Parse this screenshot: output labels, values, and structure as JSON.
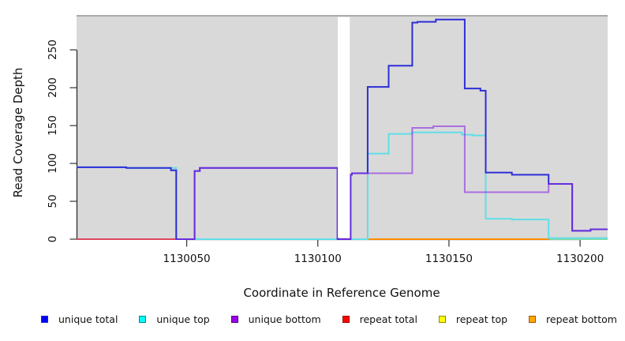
{
  "figure": {
    "y_axis": {
      "label": "Read Coverage Depth",
      "ticks": [
        "0",
        "50",
        "100",
        "150",
        "200",
        "250"
      ]
    },
    "x_axis": {
      "label": "Coordinate in Reference Genome",
      "ticks": [
        "1130050",
        "1130100",
        "1130150",
        "1130200"
      ]
    }
  },
  "legend": {
    "items": [
      {
        "label": "unique total",
        "fill": "#0000ff",
        "border": "#2222cc"
      },
      {
        "label": "unique top",
        "fill": "#00ffff",
        "border": "#008b8b"
      },
      {
        "label": "unique bottom",
        "fill": "#9900e6",
        "border": "#550080"
      },
      {
        "label": "repeat total",
        "fill": "#ff0000",
        "border": "#990000"
      },
      {
        "label": "repeat top",
        "fill": "#ffff00",
        "border": "#8b8b00"
      },
      {
        "label": "repeat bottom",
        "fill": "#ffa500",
        "border": "#aa5500"
      }
    ]
  },
  "chart_data": {
    "type": "line",
    "subtype": "step",
    "title": "",
    "xlabel": "Coordinate in Reference Genome",
    "ylabel": "Read Coverage Depth",
    "xlim": [
      1130008,
      1130210.5
    ],
    "ylim": [
      0,
      296
    ],
    "x_ticks": [
      1130050,
      1130100,
      1130150,
      1130200
    ],
    "y_ticks": [
      0,
      50,
      100,
      150,
      200,
      250
    ],
    "panel_background": "#d9d9d9",
    "grid": false,
    "legend_position": "bottom",
    "masked_region": {
      "x_start": 1130107.6,
      "x_end": 1130112.2,
      "color": "#ffffff"
    },
    "series": [
      {
        "name": "unique total",
        "legend_color": "#0000ff",
        "line_color": "#2d2dd8",
        "steps": [
          [
            1130008,
            95
          ],
          [
            1130027,
            94
          ],
          [
            1130044,
            91
          ],
          [
            1130046,
            0
          ],
          [
            1130053,
            90
          ],
          [
            1130055,
            94
          ],
          [
            1130107.5,
            0
          ],
          [
            1130112.5,
            85
          ],
          [
            1130113,
            87
          ],
          [
            1130119,
            201
          ],
          [
            1130127,
            229
          ],
          [
            1130136,
            286
          ],
          [
            1130138,
            287
          ],
          [
            1130145,
            290
          ],
          [
            1130156,
            199
          ],
          [
            1130162,
            196
          ],
          [
            1130164,
            88
          ],
          [
            1130174,
            85
          ],
          [
            1130188,
            73
          ],
          [
            1130197,
            11
          ],
          [
            1130204,
            13
          ]
        ],
        "x_end": 1130210.5
      },
      {
        "name": "unique top",
        "legend_color": "#00ffff",
        "line_color": "#60dee8",
        "steps": [
          [
            1130008,
            95
          ],
          [
            1130027,
            94
          ],
          [
            1130046,
            0
          ],
          [
            1130119,
            113
          ],
          [
            1130127,
            139
          ],
          [
            1130136,
            141
          ],
          [
            1130155,
            138
          ],
          [
            1130159,
            137
          ],
          [
            1130164,
            27
          ],
          [
            1130174,
            26
          ],
          [
            1130188,
            1.5
          ]
        ],
        "x_end": 1130210.5
      },
      {
        "name": "unique bottom",
        "legend_color": "#9900e6",
        "line_color": "rgba(138,43,226,0.62)",
        "steps": [
          [
            1130046,
            0
          ],
          [
            1130053,
            90
          ],
          [
            1130055,
            94
          ],
          [
            1130107.5,
            0
          ],
          [
            1130112.5,
            85
          ],
          [
            1130113,
            87
          ],
          [
            1130136,
            147
          ],
          [
            1130144,
            149
          ],
          [
            1130156,
            62
          ],
          [
            1130188,
            73
          ],
          [
            1130197,
            11
          ],
          [
            1130204,
            13
          ]
        ],
        "x_end": 1130210.5
      },
      {
        "name": "repeat total",
        "legend_color": "#ff0000",
        "line_color": "#dc4560",
        "steps": [
          [
            1130008,
            0
          ]
        ],
        "x_end": 1130210.5,
        "rendered_as": "zero-segment"
      },
      {
        "name": "repeat top",
        "legend_color": "#ffff00",
        "line_color": "#86d79f",
        "steps": [
          [
            1130008,
            0
          ]
        ],
        "x_end": 1130210.5,
        "rendered_as": "zero-segment"
      },
      {
        "name": "repeat bottom",
        "legend_color": "#ffa500",
        "line_color": "#ff8c00",
        "steps": [
          [
            1130008,
            0
          ]
        ],
        "x_end": 1130210.5,
        "rendered_as": "zero-segment"
      }
    ],
    "zero_line_segments": [
      {
        "color": "#dc4560",
        "x1": 1130008,
        "x2": 1130046.5
      },
      {
        "color": "#86d79f",
        "x1": 1130053,
        "x2": 1130107.5
      },
      {
        "color": "#86d79f",
        "x1": 1130112.5,
        "x2": 1130119
      },
      {
        "color": "#ff8c00",
        "x1": 1130119,
        "x2": 1130188.5
      },
      {
        "color": "#86d79f",
        "x1": 1130188.5,
        "x2": 1130210.5
      }
    ]
  }
}
